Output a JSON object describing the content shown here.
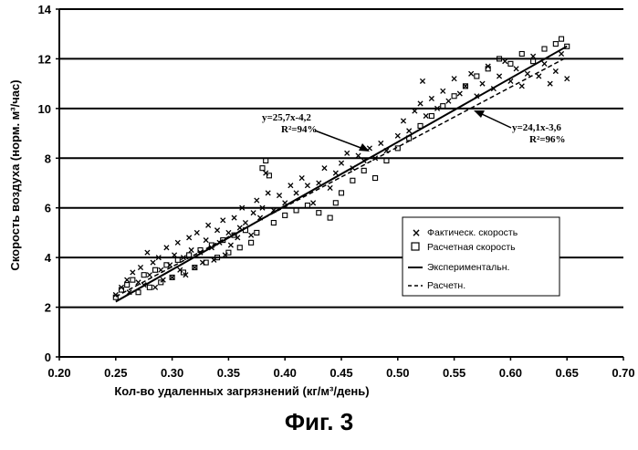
{
  "figure_caption": "Фиг. 3",
  "chart_data": {
    "type": "scatter",
    "xlabel": "Кол-во удаленных загрязнений (кг/м³/день)",
    "ylabel": "Скорость воздуха (норм. м³/час)",
    "xlim": [
      0.2,
      0.7
    ],
    "ylim": [
      0,
      14
    ],
    "x_ticks": [
      "0.20",
      "0.25",
      "0.30",
      "0.35",
      "0.40",
      "0.45",
      "0.50",
      "0.55",
      "0.60",
      "0.65",
      "0.70"
    ],
    "y_ticks": [
      "0",
      "2",
      "4",
      "6",
      "8",
      "10",
      "12",
      "14"
    ],
    "grid": "horizontal",
    "legend_position": "right",
    "series": [
      {
        "name": "Фактическ. скорость",
        "marker": "x",
        "points": [
          [
            0.25,
            2.5
          ],
          [
            0.255,
            2.8
          ],
          [
            0.26,
            3.1
          ],
          [
            0.262,
            2.6
          ],
          [
            0.265,
            3.4
          ],
          [
            0.27,
            3.0
          ],
          [
            0.272,
            3.6
          ],
          [
            0.275,
            2.9
          ],
          [
            0.278,
            4.2
          ],
          [
            0.28,
            3.3
          ],
          [
            0.283,
            3.8
          ],
          [
            0.285,
            2.8
          ],
          [
            0.288,
            4.0
          ],
          [
            0.29,
            3.5
          ],
          [
            0.292,
            3.1
          ],
          [
            0.295,
            4.4
          ],
          [
            0.298,
            3.7
          ],
          [
            0.3,
            3.2
          ],
          [
            0.302,
            4.1
          ],
          [
            0.305,
            4.6
          ],
          [
            0.307,
            3.5
          ],
          [
            0.31,
            4.0
          ],
          [
            0.312,
            3.3
          ],
          [
            0.315,
            4.8
          ],
          [
            0.317,
            4.3
          ],
          [
            0.32,
            3.6
          ],
          [
            0.322,
            5.0
          ],
          [
            0.325,
            4.2
          ],
          [
            0.327,
            3.8
          ],
          [
            0.33,
            4.7
          ],
          [
            0.332,
            5.3
          ],
          [
            0.335,
            4.4
          ],
          [
            0.337,
            3.9
          ],
          [
            0.34,
            5.1
          ],
          [
            0.342,
            4.6
          ],
          [
            0.345,
            5.5
          ],
          [
            0.347,
            4.1
          ],
          [
            0.35,
            5.0
          ],
          [
            0.352,
            4.5
          ],
          [
            0.355,
            5.6
          ],
          [
            0.358,
            4.8
          ],
          [
            0.36,
            5.2
          ],
          [
            0.362,
            6.0
          ],
          [
            0.365,
            5.4
          ],
          [
            0.37,
            4.9
          ],
          [
            0.372,
            5.8
          ],
          [
            0.375,
            6.3
          ],
          [
            0.378,
            5.6
          ],
          [
            0.38,
            6.0
          ],
          [
            0.383,
            7.4
          ],
          [
            0.385,
            6.6
          ],
          [
            0.39,
            5.9
          ],
          [
            0.395,
            6.5
          ],
          [
            0.4,
            6.2
          ],
          [
            0.405,
            6.9
          ],
          [
            0.41,
            6.6
          ],
          [
            0.415,
            7.2
          ],
          [
            0.42,
            6.9
          ],
          [
            0.425,
            6.2
          ],
          [
            0.43,
            7.0
          ],
          [
            0.435,
            7.6
          ],
          [
            0.44,
            6.8
          ],
          [
            0.445,
            7.4
          ],
          [
            0.45,
            7.8
          ],
          [
            0.455,
            8.2
          ],
          [
            0.46,
            7.6
          ],
          [
            0.465,
            8.1
          ],
          [
            0.47,
            7.9
          ],
          [
            0.475,
            8.4
          ],
          [
            0.48,
            8.0
          ],
          [
            0.485,
            8.6
          ],
          [
            0.49,
            8.3
          ],
          [
            0.5,
            8.9
          ],
          [
            0.505,
            9.5
          ],
          [
            0.51,
            9.1
          ],
          [
            0.515,
            9.9
          ],
          [
            0.52,
            10.2
          ],
          [
            0.522,
            11.1
          ],
          [
            0.525,
            9.7
          ],
          [
            0.53,
            10.4
          ],
          [
            0.535,
            10.0
          ],
          [
            0.54,
            10.7
          ],
          [
            0.545,
            10.3
          ],
          [
            0.55,
            11.2
          ],
          [
            0.555,
            10.6
          ],
          [
            0.56,
            10.9
          ],
          [
            0.565,
            11.4
          ],
          [
            0.57,
            10.5
          ],
          [
            0.575,
            11.0
          ],
          [
            0.58,
            11.7
          ],
          [
            0.585,
            10.8
          ],
          [
            0.59,
            11.3
          ],
          [
            0.595,
            11.9
          ],
          [
            0.6,
            11.1
          ],
          [
            0.605,
            11.6
          ],
          [
            0.61,
            10.9
          ],
          [
            0.615,
            11.4
          ],
          [
            0.62,
            12.1
          ],
          [
            0.625,
            11.3
          ],
          [
            0.63,
            11.8
          ],
          [
            0.635,
            11.0
          ],
          [
            0.64,
            11.5
          ],
          [
            0.645,
            12.2
          ],
          [
            0.65,
            11.2
          ]
        ]
      },
      {
        "name": "Расчетная скорость",
        "marker": "square",
        "points": [
          [
            0.25,
            2.4
          ],
          [
            0.255,
            2.7
          ],
          [
            0.26,
            2.9
          ],
          [
            0.265,
            3.1
          ],
          [
            0.27,
            2.6
          ],
          [
            0.275,
            3.3
          ],
          [
            0.28,
            2.8
          ],
          [
            0.285,
            3.5
          ],
          [
            0.29,
            3.0
          ],
          [
            0.295,
            3.7
          ],
          [
            0.3,
            3.2
          ],
          [
            0.305,
            3.9
          ],
          [
            0.31,
            3.4
          ],
          [
            0.315,
            4.1
          ],
          [
            0.32,
            3.6
          ],
          [
            0.325,
            4.3
          ],
          [
            0.33,
            3.8
          ],
          [
            0.335,
            4.5
          ],
          [
            0.34,
            4.0
          ],
          [
            0.345,
            4.7
          ],
          [
            0.35,
            4.2
          ],
          [
            0.355,
            4.9
          ],
          [
            0.36,
            4.4
          ],
          [
            0.365,
            5.1
          ],
          [
            0.37,
            4.6
          ],
          [
            0.375,
            5.0
          ],
          [
            0.38,
            7.6
          ],
          [
            0.383,
            7.9
          ],
          [
            0.386,
            7.3
          ],
          [
            0.39,
            5.4
          ],
          [
            0.4,
            5.7
          ],
          [
            0.41,
            5.9
          ],
          [
            0.42,
            6.1
          ],
          [
            0.43,
            5.8
          ],
          [
            0.44,
            5.6
          ],
          [
            0.445,
            6.2
          ],
          [
            0.45,
            6.6
          ],
          [
            0.46,
            7.1
          ],
          [
            0.47,
            7.5
          ],
          [
            0.48,
            7.2
          ],
          [
            0.49,
            7.9
          ],
          [
            0.5,
            8.4
          ],
          [
            0.51,
            8.8
          ],
          [
            0.52,
            9.3
          ],
          [
            0.53,
            9.7
          ],
          [
            0.54,
            10.1
          ],
          [
            0.55,
            10.5
          ],
          [
            0.56,
            10.9
          ],
          [
            0.57,
            11.3
          ],
          [
            0.58,
            11.6
          ],
          [
            0.59,
            12.0
          ],
          [
            0.6,
            11.8
          ],
          [
            0.61,
            12.2
          ],
          [
            0.62,
            11.9
          ],
          [
            0.63,
            12.4
          ],
          [
            0.64,
            12.6
          ],
          [
            0.645,
            12.8
          ],
          [
            0.65,
            12.5
          ]
        ]
      }
    ],
    "lines": [
      {
        "name": "Экспериментальн.",
        "style": "solid",
        "slope": 25.7,
        "intercept": -4.2,
        "x_range": [
          0.25,
          0.65
        ]
      },
      {
        "name": "Расчетн.",
        "style": "dashed",
        "slope": 24.1,
        "intercept": -3.6,
        "x_range": [
          0.25,
          0.65
        ]
      }
    ],
    "annotations": [
      {
        "lines": [
          "y=25,7x-4,2",
          "R²=94%"
        ],
        "target": "Экспериментальн."
      },
      {
        "lines": [
          "y=24,1x-3,6",
          "R²=96%"
        ],
        "target": "Расчетн."
      }
    ]
  },
  "colors": {
    "ink": "#000000",
    "background": "#ffffff"
  }
}
